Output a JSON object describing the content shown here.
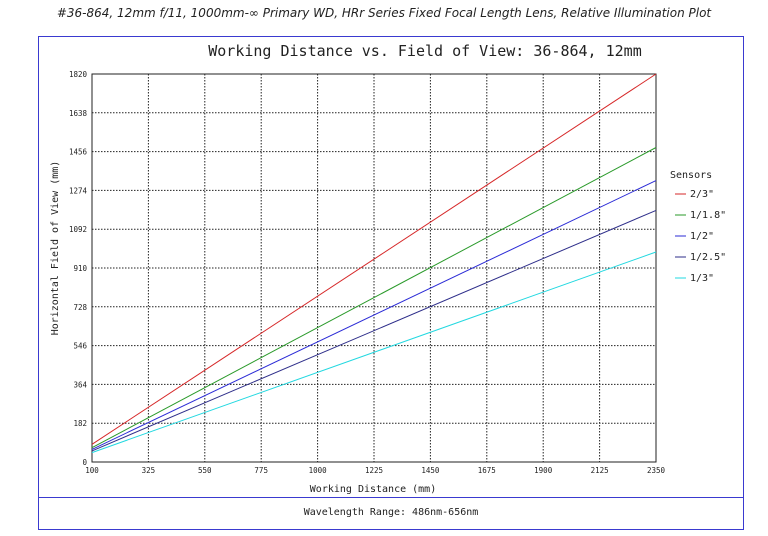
{
  "page_heading": "#36-864, 12mm f/11, 1000mm-∞ Primary WD, HRr Series Fixed Focal Length Lens, Relative Illumination Plot",
  "footer": "Wavelength Range: 486nm-656nm",
  "chart_data": {
    "type": "line",
    "title": "Working Distance vs. Field of View: 36-864, 12mm",
    "xlabel": "Working Distance (mm)",
    "ylabel": "Horizontal Field of View (mm)",
    "xlim": [
      100,
      2350
    ],
    "ylim": [
      0,
      1820
    ],
    "x_ticks": [
      100,
      325,
      550,
      775,
      1000,
      1225,
      1450,
      1675,
      1900,
      2125,
      2350
    ],
    "y_ticks": [
      0,
      182,
      364,
      546,
      728,
      910,
      1092,
      1274,
      1456,
      1638,
      1820
    ],
    "grid": true,
    "legend_title": "Sensors",
    "legend_position": "right",
    "x": [
      100,
      2350
    ],
    "series": [
      {
        "name": "2/3\"",
        "color": "#d62728",
        "values": [
          83,
          1820
        ]
      },
      {
        "name": "1/1.8\"",
        "color": "#2a9a2a",
        "values": [
          67,
          1475
        ]
      },
      {
        "name": "1/2\"",
        "color": "#2b2bd6",
        "values": [
          59,
          1320
        ]
      },
      {
        "name": "1/2.5\"",
        "color": "#2e2e8a",
        "values": [
          52,
          1180
        ]
      },
      {
        "name": "1/3\"",
        "color": "#22d8e0",
        "values": [
          44,
          985
        ]
      }
    ]
  }
}
